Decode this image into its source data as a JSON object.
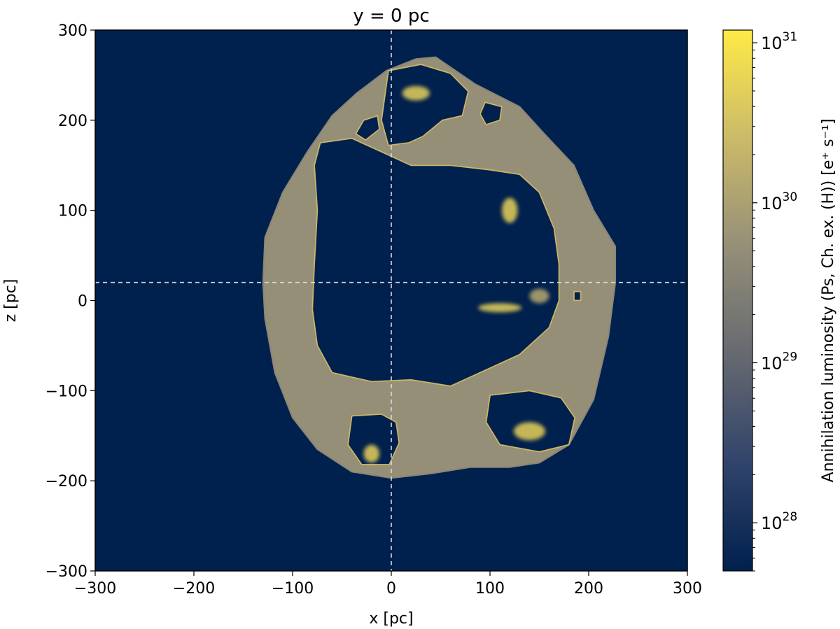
{
  "chart_data": {
    "type": "heatmap",
    "title": "y = 0 pc",
    "xlabel": "x [pc]",
    "ylabel": "z [pc]",
    "xlim": [
      -300,
      300
    ],
    "ylim": [
      -300,
      300
    ],
    "x_ticks": [
      -300,
      -200,
      -100,
      0,
      100,
      200,
      300
    ],
    "y_ticks": [
      -300,
      -200,
      -100,
      0,
      100,
      200,
      300
    ],
    "x_tick_labels": [
      "−300",
      "−200",
      "−100",
      "0",
      "100",
      "200",
      "300"
    ],
    "y_tick_labels": [
      "−300",
      "−200",
      "−100",
      "0",
      "100",
      "200",
      "300"
    ],
    "crosshair": {
      "x": 0,
      "z": 20,
      "style": "dashed",
      "color": "#d9d9d9"
    },
    "colorbar": {
      "label": "Annihilation luminosity (Ps, Ch. ex. (H)) [e⁺ s⁻¹]",
      "scale": "log",
      "range": [
        5e+27,
        1.2e+31
      ],
      "ticks": [
        1e+28,
        1e+29,
        1e+30,
        1e+31
      ],
      "tick_base": "10",
      "tick_exponents": [
        "28",
        "29",
        "30",
        "31"
      ],
      "colormap": "cividis",
      "colors": [
        "#00204d",
        "#31446b",
        "#666970",
        "#958f78",
        "#cbba69",
        "#ffea46"
      ]
    },
    "background_color": "#00204d",
    "shell": {
      "outline": [
        [
          -130,
          20
        ],
        [
          -128,
          -20
        ],
        [
          -118,
          -80
        ],
        [
          -100,
          -130
        ],
        [
          -75,
          -165
        ],
        [
          -40,
          -190
        ],
        [
          0,
          -197
        ],
        [
          40,
          -192
        ],
        [
          80,
          -185
        ],
        [
          120,
          -185
        ],
        [
          150,
          -180
        ],
        [
          180,
          -160
        ],
        [
          205,
          -110
        ],
        [
          220,
          -40
        ],
        [
          227,
          20
        ],
        [
          227,
          60
        ],
        [
          205,
          100
        ],
        [
          185,
          150
        ],
        [
          155,
          185
        ],
        [
          130,
          215
        ],
        [
          85,
          240
        ],
        [
          45,
          270
        ],
        [
          25,
          268
        ],
        [
          -5,
          255
        ],
        [
          -35,
          230
        ],
        [
          -60,
          205
        ],
        [
          -85,
          165
        ],
        [
          -110,
          120
        ],
        [
          -128,
          70
        ]
      ],
      "cavities": [
        [
          [
            -72,
            175
          ],
          [
            -40,
            180
          ],
          [
            -10,
            165
          ],
          [
            20,
            150
          ],
          [
            60,
            150
          ],
          [
            100,
            145
          ],
          [
            130,
            140
          ],
          [
            150,
            120
          ],
          [
            165,
            80
          ],
          [
            170,
            40
          ],
          [
            170,
            0
          ],
          [
            160,
            -30
          ],
          [
            130,
            -60
          ],
          [
            90,
            -80
          ],
          [
            60,
            -95
          ],
          [
            20,
            -88
          ],
          [
            -20,
            -90
          ],
          [
            -60,
            -80
          ],
          [
            -75,
            -50
          ],
          [
            -80,
            -10
          ],
          [
            -78,
            40
          ],
          [
            -75,
            100
          ],
          [
            -78,
            150
          ]
        ],
        [
          [
            -3,
            255
          ],
          [
            30,
            262
          ],
          [
            60,
            252
          ],
          [
            78,
            232
          ],
          [
            72,
            205
          ],
          [
            52,
            200
          ],
          [
            32,
            182
          ],
          [
            18,
            175
          ],
          [
            -3,
            172
          ],
          [
            -10,
            200
          ]
        ],
        [
          [
            -28,
            200
          ],
          [
            -14,
            205
          ],
          [
            -12,
            190
          ],
          [
            -26,
            178
          ],
          [
            -36,
            185
          ]
        ],
        [
          [
            95,
            220
          ],
          [
            112,
            215
          ],
          [
            110,
            200
          ],
          [
            96,
            195
          ],
          [
            90,
            207
          ]
        ],
        [
          [
            100,
            -105
          ],
          [
            140,
            -100
          ],
          [
            172,
            -108
          ],
          [
            186,
            -130
          ],
          [
            180,
            -160
          ],
          [
            150,
            -168
          ],
          [
            110,
            -160
          ],
          [
            96,
            -135
          ]
        ],
        [
          [
            -40,
            -128
          ],
          [
            -10,
            -126
          ],
          [
            5,
            -135
          ],
          [
            8,
            -158
          ],
          [
            -2,
            -182
          ],
          [
            -30,
            -182
          ],
          [
            -44,
            -160
          ]
        ],
        [
          [
            185,
            0
          ],
          [
            192,
            0
          ],
          [
            192,
            10
          ],
          [
            185,
            10
          ]
        ]
      ],
      "bright_patches": [
        {
          "x": 25,
          "z": 230,
          "rx": 14,
          "ry": 8,
          "level": 1.0
        },
        {
          "x": 120,
          "z": 100,
          "rx": 8,
          "ry": 14,
          "level": 0.9
        },
        {
          "x": 110,
          "z": -8,
          "rx": 22,
          "ry": 5,
          "level": 0.95
        },
        {
          "x": 140,
          "z": -145,
          "rx": 16,
          "ry": 10,
          "level": 0.9
        },
        {
          "x": -20,
          "z": -170,
          "rx": 8,
          "ry": 10,
          "level": 0.9
        },
        {
          "x": 150,
          "z": 5,
          "rx": 10,
          "ry": 8,
          "level": 0.6
        }
      ]
    }
  }
}
